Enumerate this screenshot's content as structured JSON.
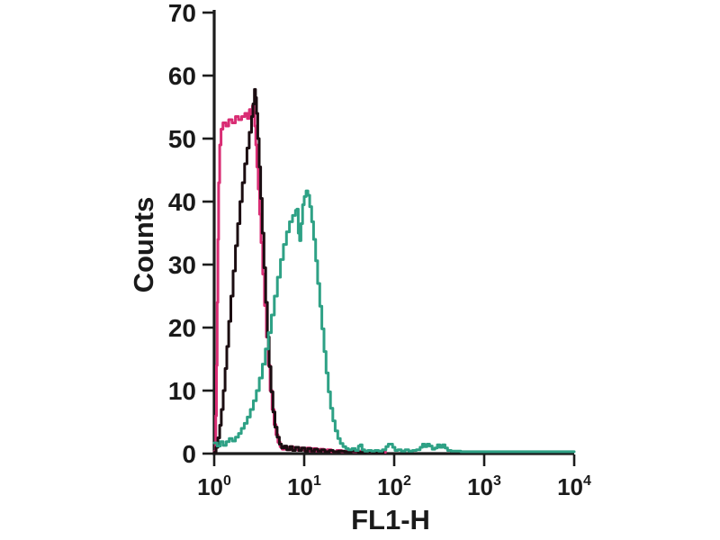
{
  "figure": {
    "background": "#ffffff"
  },
  "chart_data": {
    "type": "line",
    "subtype": "flow-cytometry-histogram-overlay",
    "title": "",
    "xlabel": "FL1-H",
    "ylabel": "Counts",
    "x_scale": "log10",
    "xlim": [
      1,
      10000
    ],
    "ylim": [
      0,
      70
    ],
    "grid": false,
    "legend_position": "none",
    "axis_color": "#1c1c1c",
    "y_ticks": [
      "70",
      "60",
      "50",
      "40",
      "30",
      "20",
      "10",
      "0"
    ],
    "x_ticks": [
      {
        "base": "10",
        "exp": "0"
      },
      {
        "base": "10",
        "exp": "1"
      },
      {
        "base": "10",
        "exp": "2"
      },
      {
        "base": "10",
        "exp": "3"
      },
      {
        "base": "10",
        "exp": "4"
      }
    ],
    "series": [
      {
        "name": "magenta-control",
        "color": "#d92d74",
        "peak": {
          "x": 2.7,
          "count": 55
        },
        "points": [
          [
            1.0,
            0.3
          ],
          [
            1.04,
            6
          ],
          [
            1.06,
            14
          ],
          [
            1.08,
            24
          ],
          [
            1.1,
            34
          ],
          [
            1.12,
            43
          ],
          [
            1.15,
            49
          ],
          [
            1.19,
            51.5
          ],
          [
            1.25,
            52.5
          ],
          [
            1.35,
            52
          ],
          [
            1.45,
            53
          ],
          [
            1.58,
            52.5
          ],
          [
            1.72,
            53.5
          ],
          [
            1.86,
            53
          ],
          [
            2.02,
            53.5
          ],
          [
            2.19,
            54
          ],
          [
            2.34,
            53.2
          ],
          [
            2.46,
            54.6
          ],
          [
            2.57,
            53.8
          ],
          [
            2.66,
            55.2
          ],
          [
            2.75,
            54.2
          ],
          [
            2.82,
            52
          ],
          [
            2.9,
            49
          ],
          [
            2.98,
            45.5
          ],
          [
            3.08,
            42
          ],
          [
            3.19,
            38
          ],
          [
            3.31,
            33.5
          ],
          [
            3.46,
            28.5
          ],
          [
            3.62,
            23.5
          ],
          [
            3.8,
            18.5
          ],
          [
            3.99,
            14
          ],
          [
            4.18,
            10
          ],
          [
            4.4,
            7
          ],
          [
            4.62,
            4.6
          ],
          [
            4.85,
            3
          ],
          [
            5.1,
            1.8
          ],
          [
            5.4,
            1.1
          ],
          [
            5.7,
            0.7
          ],
          [
            6.1,
            1.0
          ],
          [
            6.5,
            0.6
          ],
          [
            7.0,
            1.1
          ],
          [
            7.5,
            0.6
          ],
          [
            8.0,
            1.0
          ],
          [
            8.6,
            0.5
          ],
          [
            9.2,
            0.9
          ],
          [
            10.0,
            0.5
          ],
          [
            10.8,
            0.9
          ],
          [
            11.7,
            0.4
          ],
          [
            12.7,
            0.8
          ],
          [
            13.8,
            0.4
          ],
          [
            15.0,
            0.7
          ],
          [
            16.5,
            0.4
          ],
          [
            18.0,
            0.6
          ],
          [
            20,
            0.3
          ],
          [
            23,
            0.5
          ],
          [
            26,
            0.3
          ],
          [
            30,
            0.5
          ],
          [
            35,
            0.3
          ],
          [
            42,
            0.4
          ],
          [
            50,
            0.3
          ],
          [
            60,
            0.3
          ],
          [
            72,
            0.3
          ],
          [
            80,
            0.2
          ]
        ]
      },
      {
        "name": "dark-control",
        "color": "#1b0d11",
        "peak": {
          "x": 2.8,
          "count": 58
        },
        "points": [
          [
            1.0,
            0.2
          ],
          [
            1.05,
            1
          ],
          [
            1.1,
            2.5
          ],
          [
            1.15,
            4.5
          ],
          [
            1.2,
            7
          ],
          [
            1.26,
            10
          ],
          [
            1.32,
            13.5
          ],
          [
            1.38,
            17
          ],
          [
            1.45,
            21
          ],
          [
            1.53,
            25
          ],
          [
            1.62,
            29
          ],
          [
            1.72,
            33
          ],
          [
            1.82,
            36.5
          ],
          [
            1.93,
            40
          ],
          [
            2.05,
            43
          ],
          [
            2.18,
            46
          ],
          [
            2.31,
            48.5
          ],
          [
            2.45,
            51
          ],
          [
            2.6,
            53.5
          ],
          [
            2.7,
            55.5
          ],
          [
            2.8,
            57.8
          ],
          [
            2.88,
            56.5
          ],
          [
            2.95,
            54
          ],
          [
            3.05,
            50
          ],
          [
            3.16,
            45.5
          ],
          [
            3.28,
            40.5
          ],
          [
            3.42,
            35
          ],
          [
            3.57,
            29.5
          ],
          [
            3.73,
            24
          ],
          [
            3.9,
            18.5
          ],
          [
            4.08,
            13.8
          ],
          [
            4.28,
            9.8
          ],
          [
            4.5,
            6.6
          ],
          [
            4.73,
            4.2
          ],
          [
            5.0,
            2.6
          ],
          [
            5.3,
            1.5
          ],
          [
            5.6,
            0.9
          ],
          [
            6.0,
            1.2
          ],
          [
            6.4,
            0.6
          ],
          [
            6.9,
            1.1
          ],
          [
            7.4,
            0.5
          ],
          [
            8.0,
            1.0
          ],
          [
            8.7,
            0.5
          ],
          [
            9.4,
            0.9
          ],
          [
            10.2,
            0.4
          ],
          [
            11.0,
            0.8
          ],
          [
            12.0,
            0.4
          ],
          [
            13.0,
            0.7
          ],
          [
            14.2,
            0.4
          ],
          [
            15.5,
            0.6
          ],
          [
            17,
            0.3
          ],
          [
            19,
            0.5
          ],
          [
            21,
            0.3
          ],
          [
            24,
            0.4
          ],
          [
            28,
            0.3
          ],
          [
            33,
            0.4
          ],
          [
            40,
            0.2
          ],
          [
            48,
            0.3
          ],
          [
            58,
            0.2
          ],
          [
            70,
            0.3
          ],
          [
            75,
            0.2
          ]
        ]
      },
      {
        "name": "green-stained",
        "color": "#2ea185",
        "peak": {
          "x": 10.5,
          "count": 41.7
        },
        "shoulder_peak": {
          "x": 8.3,
          "count": 38.8
        },
        "points": [
          [
            1.0,
            1.7
          ],
          [
            1.08,
            1.2
          ],
          [
            1.17,
            1.9
          ],
          [
            1.26,
            1.3
          ],
          [
            1.36,
            1.9
          ],
          [
            1.47,
            2.4
          ],
          [
            1.59,
            2.0
          ],
          [
            1.72,
            2.6
          ],
          [
            1.86,
            3.2
          ],
          [
            2.0,
            4.0
          ],
          [
            2.16,
            4.8
          ],
          [
            2.33,
            5.8
          ],
          [
            2.52,
            7.0
          ],
          [
            2.72,
            8.4
          ],
          [
            2.94,
            10.0
          ],
          [
            3.17,
            12.0
          ],
          [
            3.43,
            14.2
          ],
          [
            3.7,
            16.6
          ],
          [
            4.0,
            19.2
          ],
          [
            4.32,
            22.0
          ],
          [
            4.66,
            25.0
          ],
          [
            5.04,
            28.0
          ],
          [
            5.44,
            30.8
          ],
          [
            5.88,
            33.2
          ],
          [
            6.35,
            35.2
          ],
          [
            6.86,
            36.8
          ],
          [
            7.41,
            37.8
          ],
          [
            8.0,
            38.6
          ],
          [
            8.3,
            38.8
          ],
          [
            8.6,
            35.0
          ],
          [
            8.9,
            33.8
          ],
          [
            9.2,
            36.5
          ],
          [
            9.6,
            39.5
          ],
          [
            10.0,
            40.8
          ],
          [
            10.5,
            41.7
          ],
          [
            11.0,
            41.0
          ],
          [
            11.5,
            39.2
          ],
          [
            12.1,
            36.8
          ],
          [
            12.7,
            34.0
          ],
          [
            13.4,
            30.6
          ],
          [
            14.1,
            27.0
          ],
          [
            14.9,
            23.4
          ],
          [
            15.7,
            19.8
          ],
          [
            16.6,
            16.2
          ],
          [
            17.5,
            12.8
          ],
          [
            18.5,
            9.8
          ],
          [
            19.6,
            7.2
          ],
          [
            20.8,
            5.2
          ],
          [
            22.1,
            3.6
          ],
          [
            23.6,
            2.4
          ],
          [
            25.2,
            1.6
          ],
          [
            27.0,
            1.1
          ],
          [
            29,
            0.8
          ],
          [
            31,
            0.6
          ],
          [
            34,
            0.8
          ],
          [
            37,
            0.5
          ],
          [
            40,
            1.2
          ],
          [
            42,
            1.4
          ],
          [
            44,
            0.6
          ],
          [
            47,
            0.4
          ],
          [
            51,
            0.5
          ],
          [
            56,
            0.4
          ],
          [
            61,
            0.5
          ],
          [
            67,
            0.4
          ],
          [
            74,
            0.6
          ],
          [
            81,
            1.1
          ],
          [
            86,
            1.5
          ],
          [
            91,
            1.5
          ],
          [
            96,
            1.0
          ],
          [
            102,
            0.5
          ],
          [
            110,
            0.6
          ],
          [
            120,
            0.4
          ],
          [
            132,
            0.6
          ],
          [
            145,
            0.4
          ],
          [
            160,
            0.5
          ],
          [
            176,
            0.6
          ],
          [
            194,
            1.0
          ],
          [
            206,
            1.5
          ],
          [
            218,
            1.1
          ],
          [
            232,
            1.5
          ],
          [
            247,
            1.2
          ],
          [
            264,
            0.7
          ],
          [
            283,
            0.9
          ],
          [
            302,
            1.4
          ],
          [
            322,
            1.0
          ],
          [
            344,
            1.4
          ],
          [
            367,
            0.9
          ],
          [
            392,
            0.5
          ],
          [
            430,
            0.4
          ],
          [
            480,
            0.4
          ],
          [
            550,
            0.3
          ],
          [
            650,
            0.3
          ],
          [
            800,
            0.3
          ],
          [
            1000,
            0.3
          ],
          [
            1300,
            0.3
          ],
          [
            1700,
            0.3
          ],
          [
            2200,
            0.3
          ],
          [
            3000,
            0.3
          ],
          [
            4000,
            0.3
          ],
          [
            5500,
            0.3
          ],
          [
            7500,
            0.3
          ],
          [
            10000,
            0.3
          ]
        ]
      }
    ]
  }
}
